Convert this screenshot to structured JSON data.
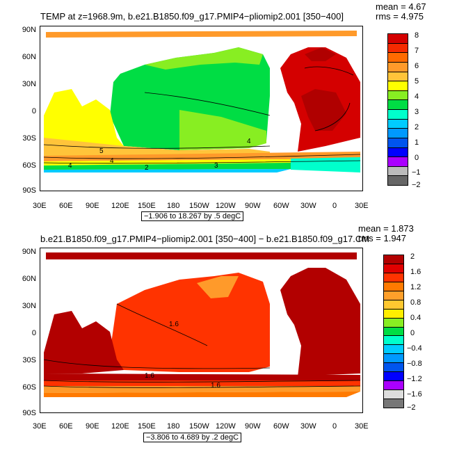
{
  "panel1": {
    "title": "TEMP at z=1968.9m, b.e21.B1850.f09_g17.PMIP4−pliomip2.001 [350−400]",
    "mean_label": "mean = 4.67",
    "rms_label": "rms = 4.975",
    "contour_info": "−1.906 to 18.267 by .5 degC",
    "colorbar_labels": [
      "8",
      "7",
      "6",
      "5",
      "4",
      "3",
      "2",
      "1",
      "0",
      "−1",
      "−2"
    ],
    "colorbar_colors": [
      "#d40000",
      "#f52a00",
      "#ff6a00",
      "#ff9a2a",
      "#ffc43a",
      "#ffff00",
      "#88ee22",
      "#00dd44",
      "#00ffcc",
      "#00ccff",
      "#0099ff",
      "#0055ee",
      "#0000ff",
      "#aa00ff",
      "#bbbbbb",
      "#666666"
    ]
  },
  "panel2": {
    "title": "b.e21.B1850.f09_g17.PMIP4−pliomip2.001 [350−400] − b.e21.B1850.f09_g17.CM",
    "mean_label": "mean = 1.873",
    "rms_label": "rms = 1.947",
    "contour_info": "−3.806 to 4.689 by .2 degC",
    "colorbar_labels": [
      "2",
      "1.6",
      "1.2",
      "0.8",
      "0.4",
      "0",
      "−0.4",
      "−0.8",
      "−1.2",
      "−1.6",
      "−2"
    ],
    "colorbar_colors": [
      "#b20000",
      "#e00000",
      "#ff3300",
      "#ff7a00",
      "#ff9f2a",
      "#ffc830",
      "#ffee00",
      "#88ee22",
      "#00dd44",
      "#00ffcc",
      "#00ccff",
      "#0099ff",
      "#0055ee",
      "#0000ff",
      "#aa00ff",
      "#dddddd",
      "#777777"
    ]
  },
  "axes": {
    "lat_labels": [
      "90N",
      "60N",
      "30N",
      "0",
      "30S",
      "60S",
      "90S"
    ],
    "lon_labels": [
      "30E",
      "60E",
      "90E",
      "120E",
      "150E",
      "180",
      "150W",
      "120W",
      "90W",
      "60W",
      "30W",
      "0",
      "30E"
    ]
  },
  "map_overlays": {
    "panel1_contour_labels": [
      "5",
      "4",
      "4",
      "3",
      "4",
      "2"
    ],
    "panel2_contour_labels": [
      "1.6",
      "1.6",
      "1.6"
    ]
  }
}
